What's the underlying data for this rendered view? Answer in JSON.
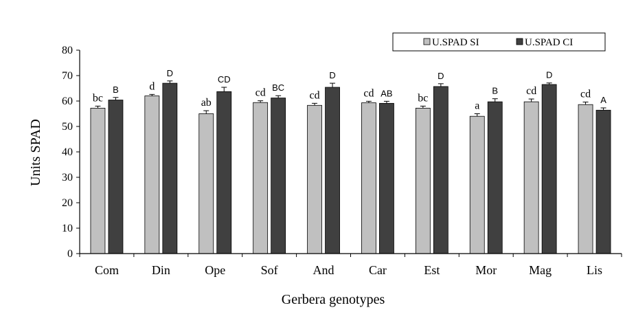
{
  "chart_data": {
    "type": "bar",
    "title": "",
    "xlabel": "Gerbera genotypes",
    "ylabel": "Units SPAD",
    "ylim": [
      0,
      80
    ],
    "yticks": [
      0,
      10,
      20,
      30,
      40,
      50,
      60,
      70,
      80
    ],
    "grid": false,
    "legend_position": "top-right",
    "categories": [
      "Com",
      "Din",
      "Ope",
      "Sof",
      "And",
      "Car",
      "Est",
      "Mor",
      "Mag",
      "Lis"
    ],
    "series": [
      {
        "name": "U.SPAD SI",
        "color": "#c0c0c0",
        "values": [
          57.2,
          62.0,
          55.0,
          59.4,
          58.3,
          59.3,
          57.2,
          54.0,
          59.7,
          58.6
        ],
        "errors": [
          0.8,
          0.6,
          1.2,
          0.7,
          0.8,
          0.6,
          0.8,
          1.0,
          1.1,
          1.0
        ],
        "labels": [
          "bc",
          "d",
          "ab",
          "cd",
          "cd",
          "cd",
          "bc",
          "a",
          "cd",
          "cd"
        ]
      },
      {
        "name": "U.SPAD CI",
        "color": "#404040",
        "values": [
          60.4,
          67.0,
          63.7,
          61.2,
          65.4,
          59.1,
          65.7,
          59.7,
          66.5,
          56.4
        ],
        "errors": [
          1.0,
          0.9,
          1.7,
          0.9,
          1.6,
          0.8,
          1.1,
          1.2,
          0.6,
          0.9
        ],
        "labels": [
          "B",
          "D",
          "CD",
          "BC",
          "D",
          "AB",
          "D",
          "B",
          "D",
          "A"
        ]
      }
    ]
  }
}
